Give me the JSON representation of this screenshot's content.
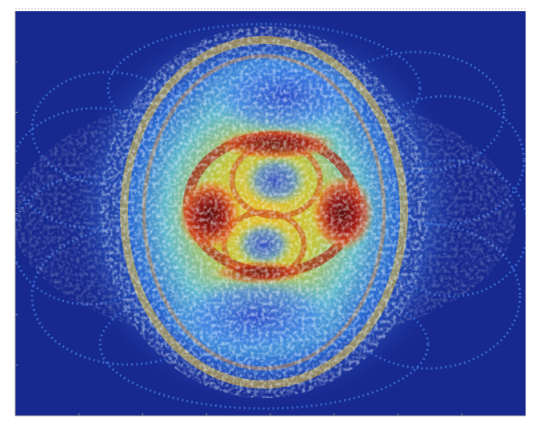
{
  "chart_data": {
    "type": "heatmap",
    "title": "",
    "xlabel": "",
    "ylabel": "",
    "colormap": "jet",
    "colors": {
      "background": "#ffffff",
      "plot_low": "#17288f",
      "axis": "#9a9a9a"
    },
    "legend": "none",
    "grid": false,
    "x_tick_count": 7,
    "y_tick_count": 7,
    "x_tick_labels": [],
    "y_tick_labels": []
  }
}
